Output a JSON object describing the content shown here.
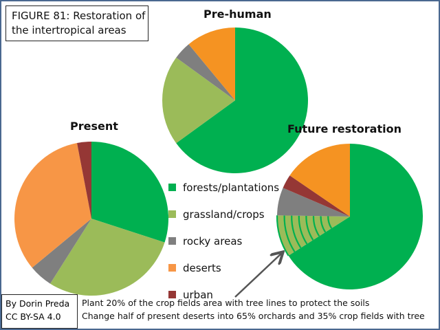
{
  "figure_title": [
    "FIGURE 81: Restoration of",
    "the intertropical areas"
  ],
  "credit": [
    "By Dorin Preda",
    "CC BY-SA 4.0"
  ],
  "notes": [
    "Plant 20%  of the crop fields area with tree  lines to protect the soils",
    "Change half of present deserts into 65% orchards and 35% crop fields with tree"
  ],
  "colors": {
    "forests": "#00b050",
    "grassland": "#9bbb59",
    "rocky": "#7f7f7f",
    "deserts": "#f79646",
    "deserts_alt": "#f59322",
    "urban": "#953735"
  },
  "chart_data": [
    {
      "type": "pie",
      "title": "Pre-human",
      "labels": [
        "forests/plantations",
        "grassland/crops",
        "rocky areas",
        "deserts"
      ],
      "values": [
        65,
        20,
        4,
        11
      ]
    },
    {
      "type": "pie",
      "title": "Present",
      "labels": [
        "forests/plantations",
        "grassland/crops",
        "rocky areas",
        "deserts",
        "urban"
      ],
      "values": [
        30,
        29,
        5,
        33,
        3
      ]
    },
    {
      "type": "pie",
      "title": "Future restoration",
      "labels": [
        "forests/plantations",
        "grassland/crops",
        "rocky areas",
        "urban",
        "deserts"
      ],
      "values": [
        64,
        9,
        6,
        3,
        15
      ],
      "hatched": "grassland/crops"
    }
  ],
  "legend": [
    {
      "label": "forests/plantations",
      "key": "forests"
    },
    {
      "label": "grassland/crops",
      "key": "grassland"
    },
    {
      "label": "rocky areas",
      "key": "rocky"
    },
    {
      "label": "deserts",
      "key": "deserts"
    },
    {
      "label": "urban",
      "key": "urban"
    }
  ]
}
